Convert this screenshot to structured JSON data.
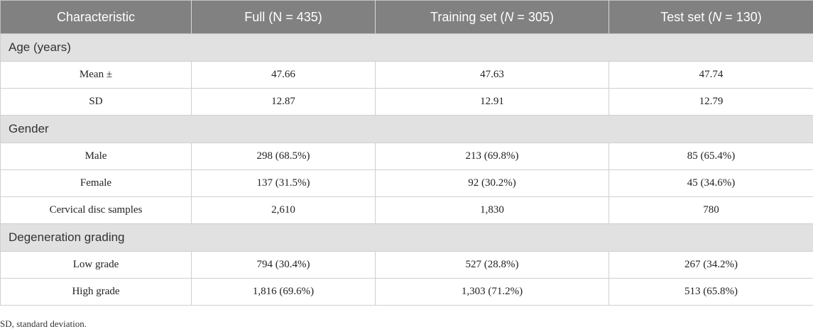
{
  "headers": {
    "characteristic": "Characteristic",
    "full": "Full (N = 435)",
    "training_prefix": "Training set (",
    "training_n": "N",
    "training_suffix": " = 305)",
    "test_prefix": "Test set (",
    "test_n": "N",
    "test_suffix": " = 130)"
  },
  "sections": {
    "age": "Age (years)",
    "gender": "Gender",
    "degeneration": "Degeneration grading"
  },
  "rows": {
    "mean": [
      "Mean ±",
      "47.66",
      "47.63",
      "47.74"
    ],
    "sd": [
      "SD",
      "12.87",
      "12.91",
      "12.79"
    ],
    "male": [
      "Male",
      "298 (68.5%)",
      "213 (69.8%)",
      "85 (65.4%)"
    ],
    "female": [
      "Female",
      "137 (31.5%)",
      "92 (30.2%)",
      "45 (34.6%)"
    ],
    "samples": [
      "Cervical disc samples",
      "2,610",
      "1,830",
      "780"
    ],
    "low": [
      "Low grade",
      "794 (30.4%)",
      "527 (28.8%)",
      "267 (34.2%)"
    ],
    "high": [
      "High grade",
      "1,816 (69.6%)",
      "1,303 (71.2%)",
      "513 (65.8%)"
    ]
  },
  "footnote": "SD, standard deviation."
}
